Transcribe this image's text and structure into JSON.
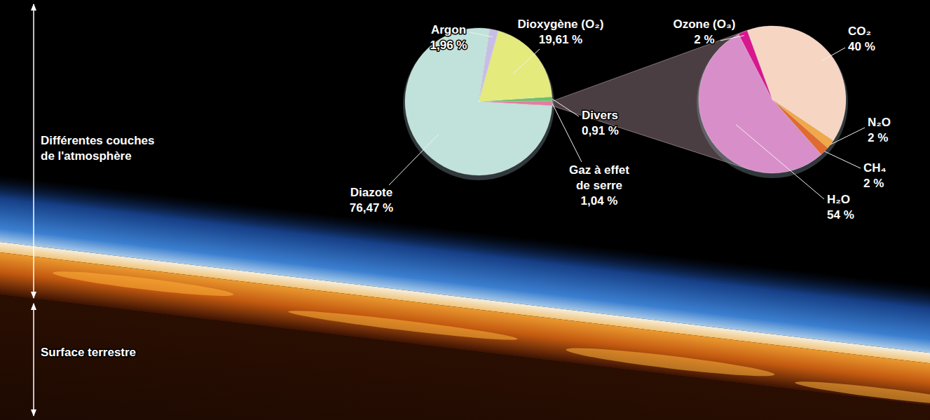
{
  "chart_data": [
    {
      "type": "pie",
      "categories": [
        "Argon",
        "Dioxygène (O₂)",
        "Divers",
        "Gaz à effet de serre",
        "Diazote"
      ],
      "values": [
        1.96,
        19.61,
        0.91,
        1.04,
        76.47
      ],
      "value_labels": [
        "1,96 %",
        "19,61 %",
        "0,91 %",
        "1,04 %",
        "76,47 %"
      ],
      "colors": [
        "#c8bde6",
        "#e4ea7c",
        "#6cbf6a",
        "#e17ea2",
        "#c0e2da"
      ],
      "data_labels": true
    },
    {
      "type": "pie",
      "categories": [
        "CO₂",
        "N₂O",
        "CH₄",
        "H₂O",
        "Ozone (O₃)"
      ],
      "values": [
        40,
        2,
        2,
        54,
        2
      ],
      "value_labels": [
        "40 %",
        "2 %",
        "2 %",
        "54 %",
        "2 %"
      ],
      "colors": [
        "#f7d5c3",
        "#f0a848",
        "#e06a30",
        "#d88fc9",
        "#d8168e"
      ],
      "data_labels": true
    }
  ],
  "annotations": [
    "Différentes couches de l'atmosphère",
    "Surface terrestre"
  ]
}
